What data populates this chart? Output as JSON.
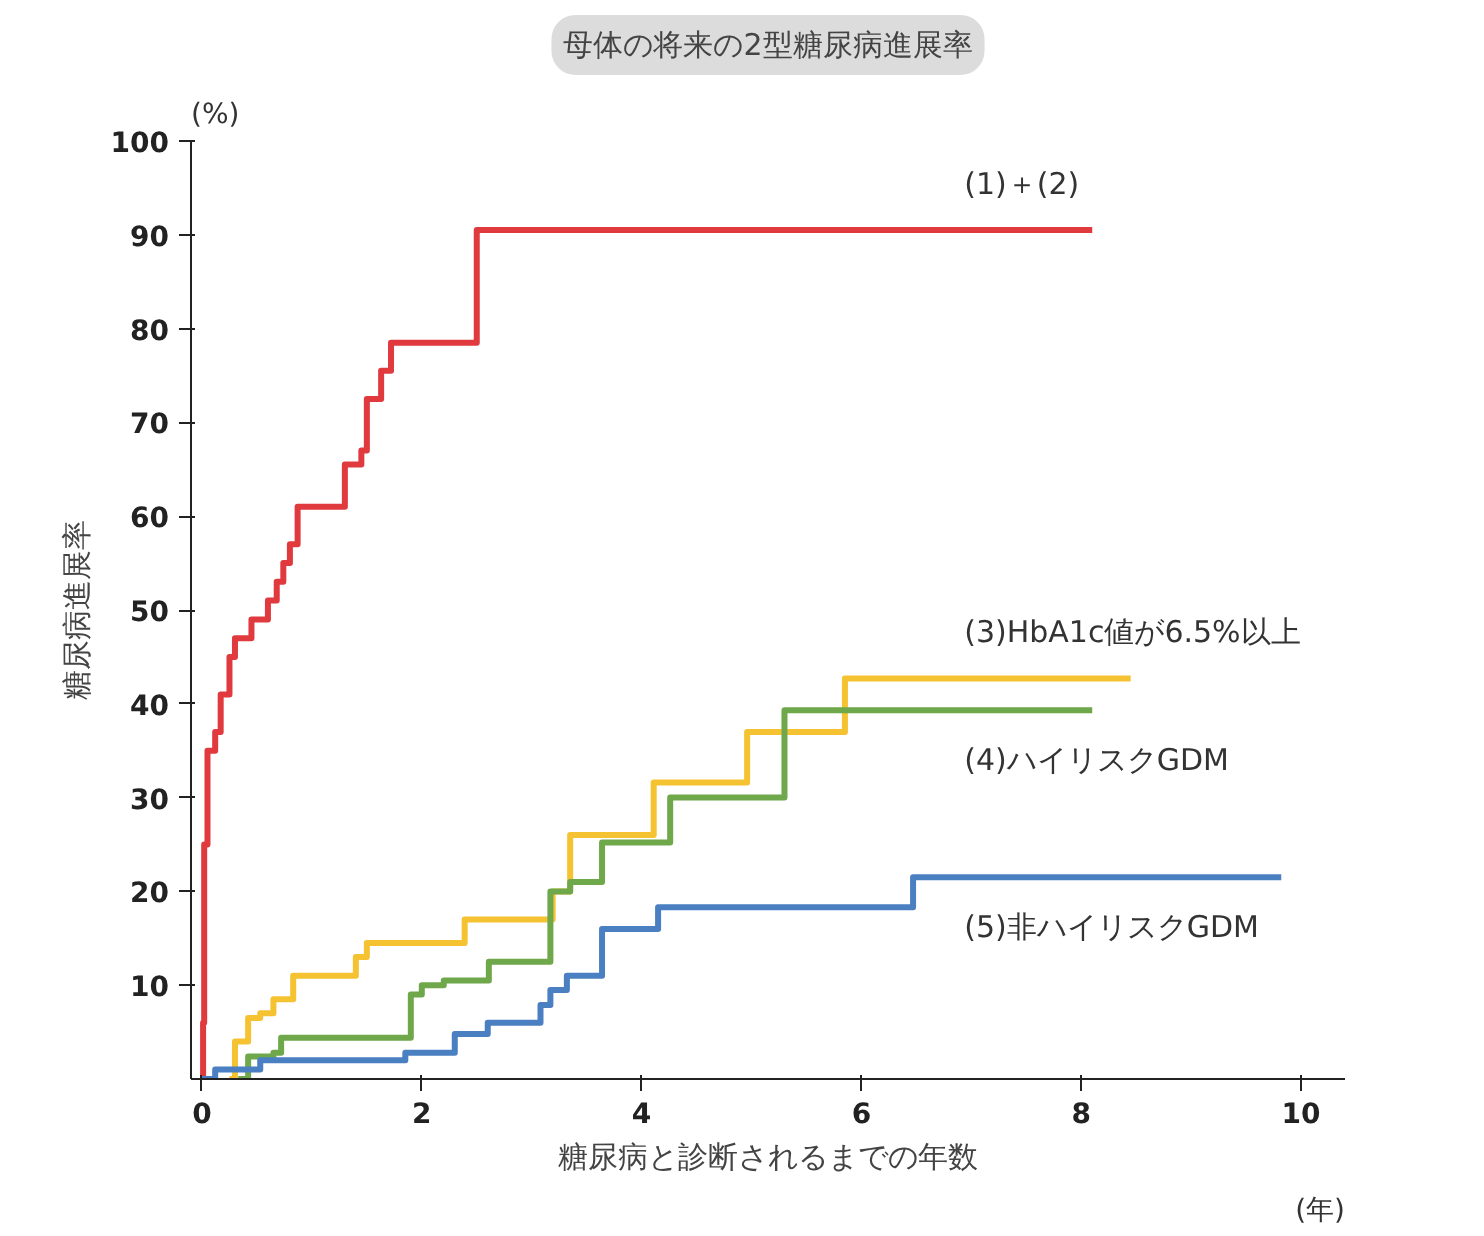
{
  "chart_data": {
    "type": "step",
    "title": "母体の将来の2型糖尿病進展率",
    "xlabel": "糖尿病と診断されるまでの年数",
    "ylabel": "糖尿病進展率",
    "annotations": [
      "(%)",
      "(年)"
    ],
    "xlim": [
      -0.1,
      10.4
    ],
    "ylim": [
      0,
      100
    ],
    "xticks": [
      0,
      2,
      4,
      6,
      8,
      10
    ],
    "yticks": [
      10,
      20,
      30,
      40,
      50,
      60,
      70,
      80,
      90,
      100
    ],
    "grid": false,
    "legend": false,
    "marker": "none",
    "line_style": "solid",
    "series": [
      {
        "name": "(1)＋(2)",
        "color": "#e03a3e",
        "x": [
          0,
          0.01,
          0.02,
          0.05,
          0.12,
          0.17,
          0.25,
          0.3,
          0.45,
          0.6,
          0.68,
          0.74,
          0.8,
          0.87,
          1.3,
          1.45,
          1.5,
          1.63,
          1.72,
          2.5,
          8.1
        ],
        "values": [
          0,
          6,
          25,
          35,
          37,
          41,
          45,
          47,
          49,
          51,
          53,
          55,
          57,
          61,
          65.5,
          67,
          72.5,
          75.5,
          78.5,
          90.5,
          90.5
        ]
      },
      {
        "name": "(3)HbA1c値が6.5%以上",
        "color": "#f5c232",
        "x": [
          0.25,
          0.3,
          0.42,
          0.53,
          0.65,
          0.83,
          1.4,
          1.5,
          2.39,
          3.19,
          3.35,
          4.11,
          4.96,
          5.85,
          8.45
        ],
        "values": [
          0,
          4,
          6.5,
          7,
          8.5,
          11,
          13,
          14.5,
          17,
          20,
          26,
          31.6,
          37,
          42.7,
          42.7
        ]
      },
      {
        "name": "(4)ハイリスクGDM",
        "color": "#6fa84a",
        "x": [
          0.33,
          0.42,
          0.65,
          0.72,
          1.9,
          2.0,
          2.2,
          2.61,
          3.17,
          3.35,
          3.64,
          4.26,
          5.3,
          8.1
        ],
        "values": [
          0,
          2.4,
          2.8,
          4.4,
          9,
          10,
          10.5,
          12.5,
          20,
          21,
          25.2,
          30,
          39.3,
          39.3
        ]
      },
      {
        "name": "(5)非ハイリスクGDM",
        "color": "#4a7fc1",
        "x": [
          0,
          0.12,
          0.53,
          1.85,
          2.3,
          2.6,
          3.08,
          3.17,
          3.32,
          3.64,
          4.15,
          6.47,
          9.82
        ],
        "values": [
          0,
          1,
          2,
          2.8,
          4.8,
          6,
          7.9,
          9.5,
          11,
          16,
          18.3,
          21.5,
          21.5
        ]
      }
    ]
  }
}
